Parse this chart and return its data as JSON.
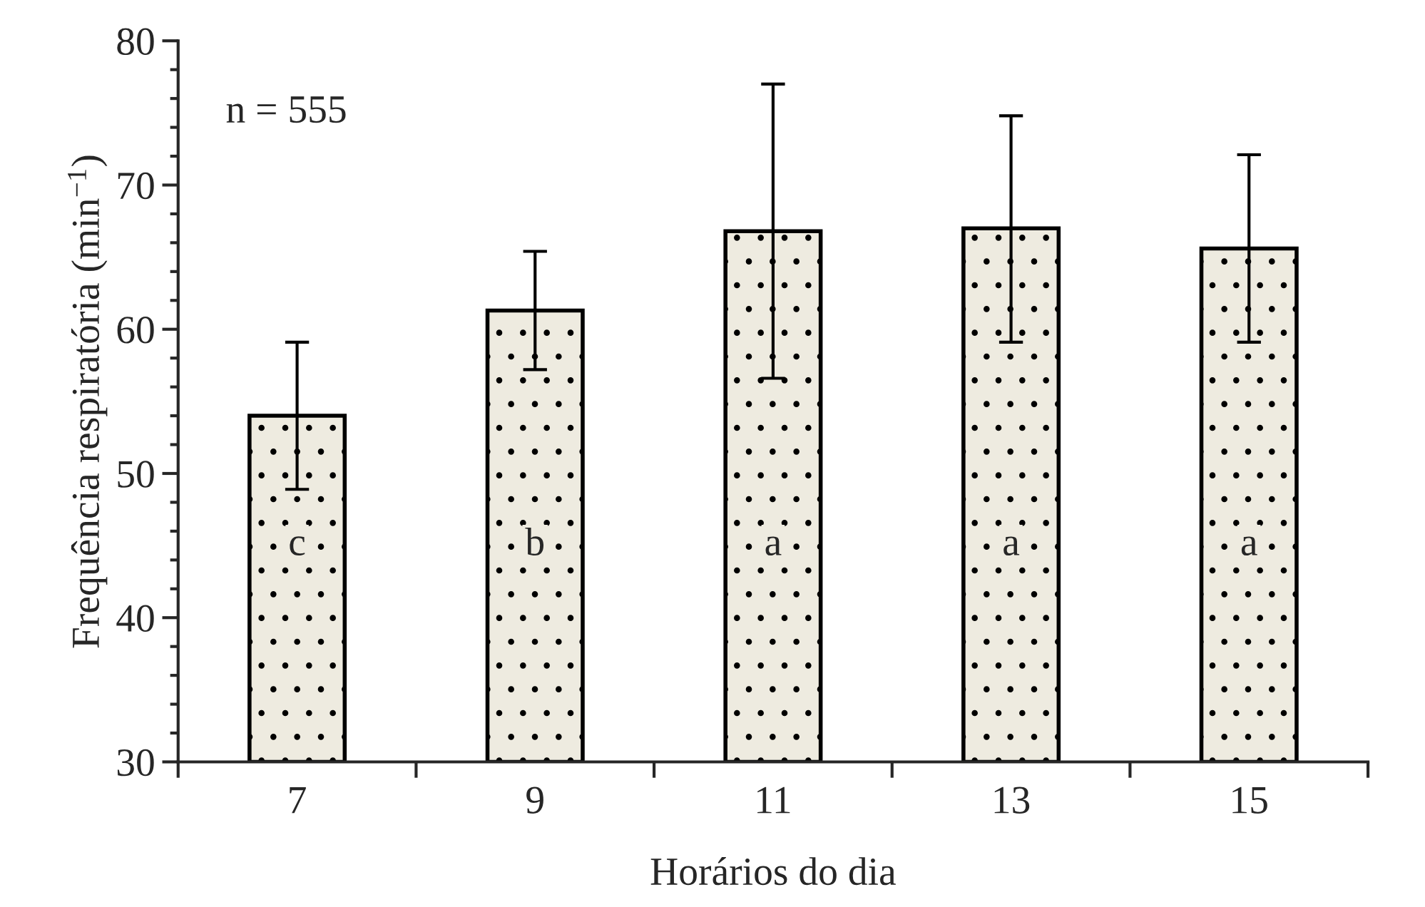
{
  "chart_data": {
    "type": "bar",
    "xlabel": "Horários do dia",
    "ylabel": "Frequência respiratória (min$^{−1}$)",
    "categories": [
      "7",
      "9",
      "11",
      "13",
      "15"
    ],
    "values": [
      54.0,
      61.3,
      66.8,
      67.0,
      65.6
    ],
    "errors": [
      [
        48.9,
        59.1
      ],
      [
        57.2,
        65.4
      ],
      [
        56.6,
        77.0
      ],
      [
        59.1,
        74.8
      ],
      [
        59.1,
        72.1
      ]
    ],
    "color": "#eeebe0",
    "ylim": [
      30,
      80
    ],
    "yticks": [
      30,
      {
        "value": 32,
        "label": null
      },
      {
        "value": 34,
        "label": null
      },
      {
        "value": 36,
        "label": null
      },
      {
        "value": 38,
        "label": null
      },
      40,
      {
        "value": 42,
        "label": null
      },
      {
        "value": 44,
        "label": null
      },
      {
        "value": 46,
        "label": null
      },
      {
        "value": 48,
        "label": null
      },
      50,
      {
        "value": 52,
        "label": null
      },
      {
        "value": 54,
        "label": null
      },
      {
        "value": 56,
        "label": null
      },
      {
        "value": 58,
        "label": null
      },
      60,
      {
        "value": 62,
        "label": null
      },
      {
        "value": 64,
        "label": null
      },
      {
        "value": 66,
        "label": null
      },
      {
        "value": 68,
        "label": null
      },
      70,
      {
        "value": 72,
        "label": null
      },
      {
        "value": 74,
        "label": null
      },
      {
        "value": 76,
        "label": null
      },
      {
        "value": 78,
        "label": null
      },
      80
    ],
    "grid": false,
    "annotations": [
      "n = 555",
      "c",
      "b",
      "a",
      "a",
      "a"
    ]
  }
}
